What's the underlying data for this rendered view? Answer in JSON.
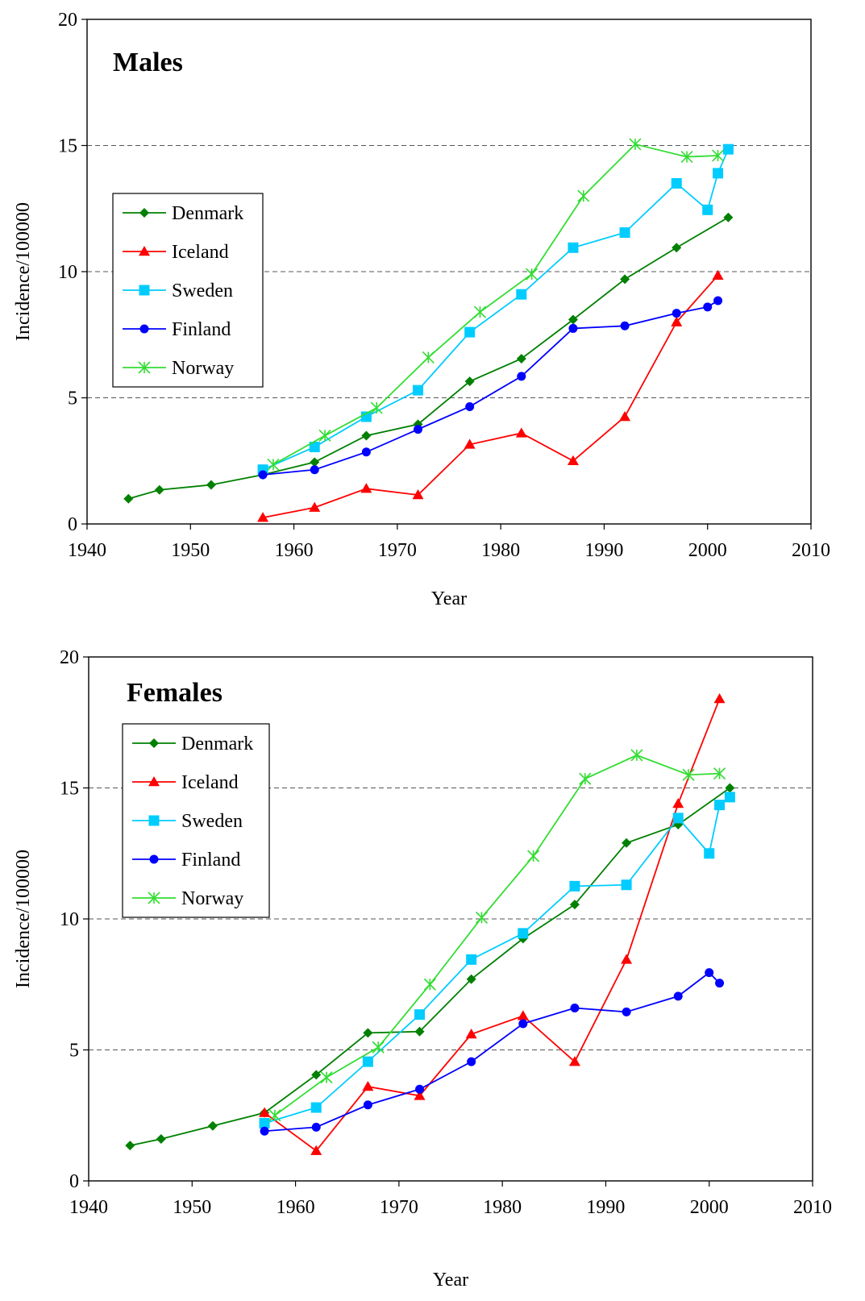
{
  "chart_data": [
    {
      "type": "line",
      "title": "Males",
      "xlabel": "Year",
      "ylabel": "Incidence/100000",
      "xlim": [
        1940,
        2010
      ],
      "ylim": [
        0,
        20
      ],
      "x_ticks": [
        "1940",
        "1950",
        "1960",
        "1970",
        "1980",
        "1990",
        "2000",
        "2010"
      ],
      "y_ticks": [
        "0",
        "5",
        "10",
        "15",
        "20"
      ],
      "grid": "horizontal dashed at 5, 10, 15",
      "legend_position": "left",
      "series": [
        {
          "name": "Denmark",
          "color": "#008000",
          "marker": "diamond",
          "points": [
            [
              1944,
              1.0
            ],
            [
              1947,
              1.35
            ],
            [
              1952,
              1.55
            ],
            [
              1957,
              1.95
            ],
            [
              1962,
              2.45
            ],
            [
              1967,
              3.5
            ],
            [
              1972,
              3.95
            ],
            [
              1977,
              5.65
            ],
            [
              1982,
              6.55
            ],
            [
              1987,
              8.1
            ],
            [
              1992,
              9.7
            ],
            [
              1997,
              10.95
            ],
            [
              2002,
              12.15
            ]
          ]
        },
        {
          "name": "Iceland",
          "color": "#ff0000",
          "marker": "triangle",
          "points": [
            [
              1957,
              0.25
            ],
            [
              1962,
              0.65
            ],
            [
              1967,
              1.4
            ],
            [
              1972,
              1.15
            ],
            [
              1977,
              3.15
            ],
            [
              1982,
              3.6
            ],
            [
              1987,
              2.5
            ],
            [
              1992,
              4.25
            ],
            [
              1997,
              8.0
            ],
            [
              2001,
              9.85
            ]
          ]
        },
        {
          "name": "Sweden",
          "color": "#00ccff",
          "marker": "square",
          "points": [
            [
              1957,
              2.15
            ],
            [
              1962,
              3.05
            ],
            [
              1967,
              4.25
            ],
            [
              1972,
              5.3
            ],
            [
              1977,
              7.6
            ],
            [
              1982,
              9.1
            ],
            [
              1987,
              10.95
            ],
            [
              1992,
              11.55
            ],
            [
              1997,
              13.5
            ],
            [
              2000,
              12.45
            ],
            [
              2001,
              13.9
            ],
            [
              2002,
              14.85
            ]
          ]
        },
        {
          "name": "Finland",
          "color": "#0000ff",
          "marker": "circle",
          "points": [
            [
              1957,
              1.95
            ],
            [
              1962,
              2.15
            ],
            [
              1967,
              2.85
            ],
            [
              1972,
              3.75
            ],
            [
              1977,
              4.65
            ],
            [
              1982,
              5.85
            ],
            [
              1987,
              7.75
            ],
            [
              1992,
              7.85
            ],
            [
              1997,
              8.35
            ],
            [
              2000,
              8.6
            ],
            [
              2001,
              8.85
            ]
          ]
        },
        {
          "name": "Norway",
          "color": "#33dd33",
          "marker": "asterisk",
          "points": [
            [
              1958,
              2.35
            ],
            [
              1963,
              3.5
            ],
            [
              1968,
              4.6
            ],
            [
              1973,
              6.6
            ],
            [
              1978,
              8.4
            ],
            [
              1983,
              9.9
            ],
            [
              1988,
              13.0
            ],
            [
              1993,
              15.05
            ],
            [
              1998,
              14.55
            ],
            [
              2001,
              14.6
            ]
          ]
        }
      ]
    },
    {
      "type": "line",
      "title": "Females",
      "xlabel": "Year",
      "ylabel": "Incidence/100000",
      "xlim": [
        1940,
        2010
      ],
      "ylim": [
        0,
        20
      ],
      "x_ticks": [
        "1940",
        "1950",
        "1960",
        "1970",
        "1980",
        "1990",
        "2000",
        "2010"
      ],
      "y_ticks": [
        "0",
        "5",
        "10",
        "15",
        "20"
      ],
      "grid": "horizontal dashed at 5, 10, 15",
      "legend_position": "top-left",
      "series": [
        {
          "name": "Denmark",
          "color": "#008000",
          "marker": "diamond",
          "points": [
            [
              1944,
              1.35
            ],
            [
              1947,
              1.6
            ],
            [
              1952,
              2.1
            ],
            [
              1957,
              2.6
            ],
            [
              1962,
              4.05
            ],
            [
              1967,
              5.65
            ],
            [
              1972,
              5.7
            ],
            [
              1977,
              7.7
            ],
            [
              1982,
              9.25
            ],
            [
              1987,
              10.55
            ],
            [
              1992,
              12.9
            ],
            [
              1997,
              13.6
            ],
            [
              2002,
              15.0
            ]
          ]
        },
        {
          "name": "Iceland",
          "color": "#ff0000",
          "marker": "triangle",
          "points": [
            [
              1957,
              2.6
            ],
            [
              1962,
              1.15
            ],
            [
              1967,
              3.6
            ],
            [
              1972,
              3.25
            ],
            [
              1977,
              5.6
            ],
            [
              1982,
              6.3
            ],
            [
              1987,
              4.55
            ],
            [
              1992,
              8.45
            ],
            [
              1997,
              14.4
            ],
            [
              2001,
              18.4
            ]
          ]
        },
        {
          "name": "Sweden",
          "color": "#00ccff",
          "marker": "square",
          "points": [
            [
              1957,
              2.2
            ],
            [
              1962,
              2.8
            ],
            [
              1967,
              4.55
            ],
            [
              1972,
              6.35
            ],
            [
              1977,
              8.45
            ],
            [
              1982,
              9.45
            ],
            [
              1987,
              11.25
            ],
            [
              1992,
              11.3
            ],
            [
              1997,
              13.85
            ],
            [
              2000,
              12.5
            ],
            [
              2001,
              14.35
            ],
            [
              2002,
              14.65
            ]
          ]
        },
        {
          "name": "Finland",
          "color": "#0000ff",
          "marker": "circle",
          "points": [
            [
              1957,
              1.9
            ],
            [
              1962,
              2.05
            ],
            [
              1967,
              2.9
            ],
            [
              1972,
              3.5
            ],
            [
              1977,
              4.55
            ],
            [
              1982,
              6.0
            ],
            [
              1987,
              6.6
            ],
            [
              1992,
              6.45
            ],
            [
              1997,
              7.05
            ],
            [
              2000,
              7.95
            ],
            [
              2001,
              7.55
            ]
          ]
        },
        {
          "name": "Norway",
          "color": "#33dd33",
          "marker": "asterisk",
          "points": [
            [
              1958,
              2.5
            ],
            [
              1963,
              3.95
            ],
            [
              1968,
              5.1
            ],
            [
              1973,
              7.5
            ],
            [
              1978,
              10.05
            ],
            [
              1983,
              12.4
            ],
            [
              1988,
              15.35
            ],
            [
              1993,
              16.25
            ],
            [
              1998,
              15.5
            ],
            [
              2001,
              15.55
            ]
          ]
        }
      ]
    }
  ]
}
